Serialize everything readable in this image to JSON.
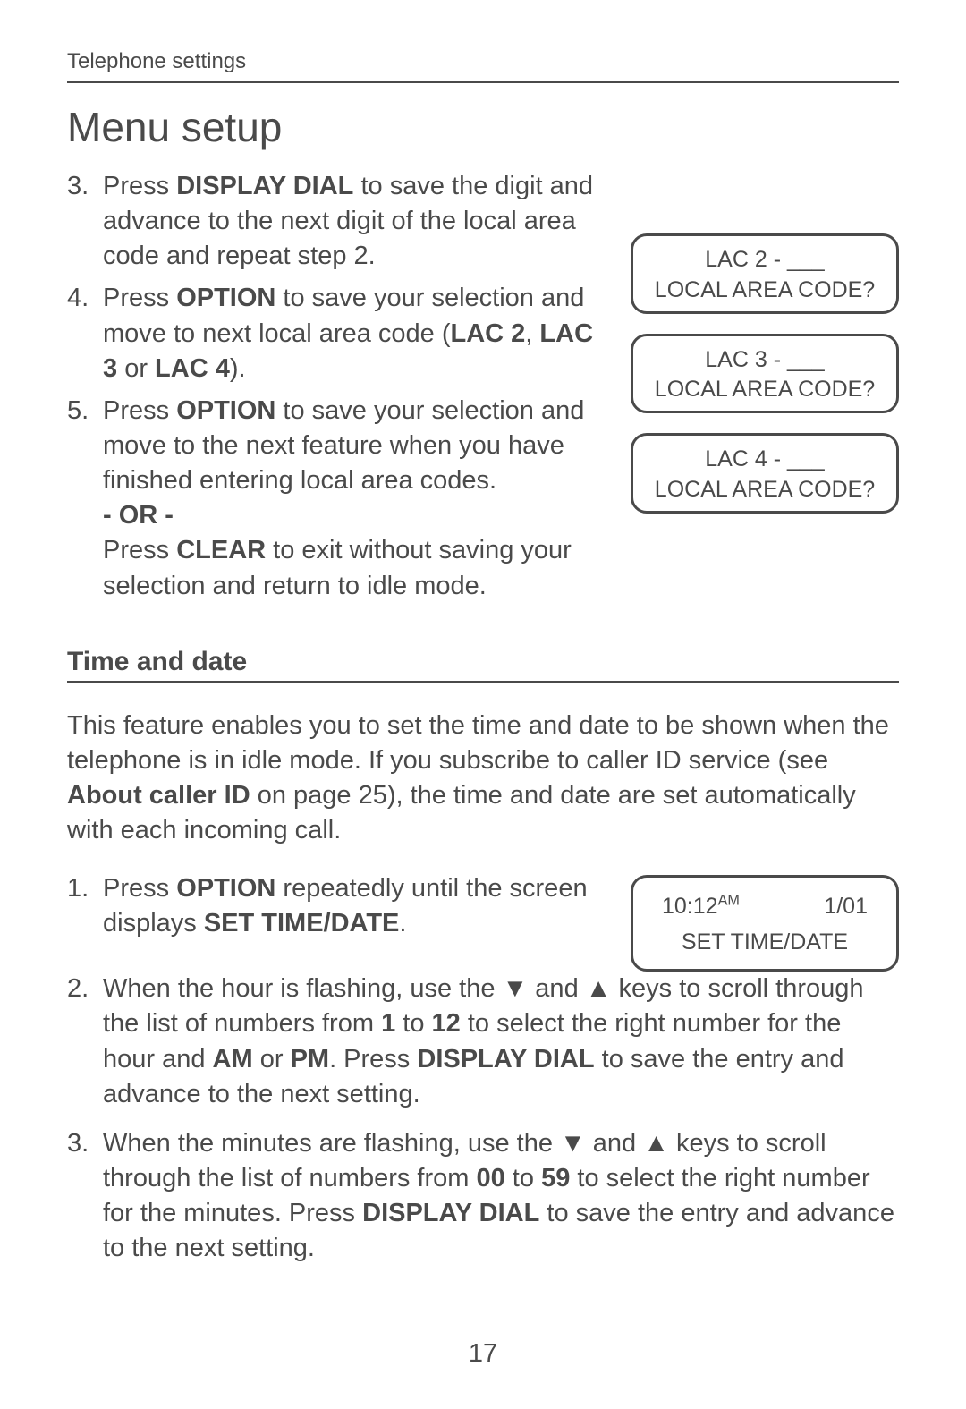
{
  "breadcrumb": "Telephone settings",
  "title": "Menu setup",
  "steps_a": {
    "3": {
      "num": "3.",
      "text_pre": "Press ",
      "b1": "DISPLAY DIAL",
      "text_post": " to save the digit and advance to the next digit of the local area code and repeat step 2."
    },
    "4": {
      "num": "4.",
      "t1": "Press ",
      "b1": "OPTION",
      "t2": " to save your selection and move to next local area code (",
      "b2": "LAC 2",
      "t3": ", ",
      "b3": "LAC 3",
      "t4": " or ",
      "b4": "LAC 4",
      "t5": ")."
    },
    "5": {
      "num": "5.",
      "t1": "Press ",
      "b1": "OPTION",
      "t2": " to save your selection and move to the next feature when you have finished entering local area codes.",
      "or": "- OR -",
      "t3": "Press ",
      "b2": "CLEAR",
      "t4": " to exit without saving your selection and return to idle mode."
    }
  },
  "screens": {
    "s1": {
      "l1": "LAC 2 - ___",
      "l2": "LOCAL AREA CODE?"
    },
    "s2": {
      "l1": "LAC 3 - ___",
      "l2": "LOCAL AREA CODE?"
    },
    "s3": {
      "l1": "LAC 4 - ___",
      "l2": "LOCAL AREA CODE?"
    }
  },
  "section2_head": "Time and date",
  "para2": {
    "t1": "This feature enables you to set the time and date to be shown when the telephone is in idle mode. If you subscribe to caller ID service (see ",
    "b1": "About caller ID",
    "t2": " on page 25), the time and date are set automatically with each incoming call."
  },
  "screen4": {
    "time": "10:12",
    "ampm": "AM",
    "date": "1/01",
    "label": "SET TIME/DATE"
  },
  "steps_b": {
    "1": {
      "num": "1.",
      "t1": "Press ",
      "b1": "OPTION",
      "t2": " repeatedly until the screen displays ",
      "b2": "SET TIME/DATE",
      "t3": "."
    },
    "2": {
      "num": "2.",
      "t1": "When the hour is flashing, use the ",
      "tri_down": "▼",
      "t2": " and ",
      "tri_up": "▲",
      "t3": " keys to scroll through the list of numbers from ",
      "b1": "1",
      "t4": " to ",
      "b2": "12",
      "t5": " to select the right number for the hour and ",
      "b3": "AM",
      "t6": " or ",
      "b4": "PM",
      "t7": ". Press ",
      "b5": "DISPLAY DIAL",
      "t8": " to save the entry and advance to the next setting."
    },
    "3": {
      "num": "3.",
      "t1": "When the minutes are flashing, use the ",
      "tri_down": "▼",
      "t2": " and ",
      "tri_up": "▲",
      "t3": " keys to scroll through the list of numbers from ",
      "b1": "00",
      "t4": " to ",
      "b2": "59",
      "t5": " to select the right number for the minutes. Press ",
      "b3": "DISPLAY DIAL",
      "t6": " to save the entry and advance to the next setting."
    }
  },
  "page_number": "17"
}
